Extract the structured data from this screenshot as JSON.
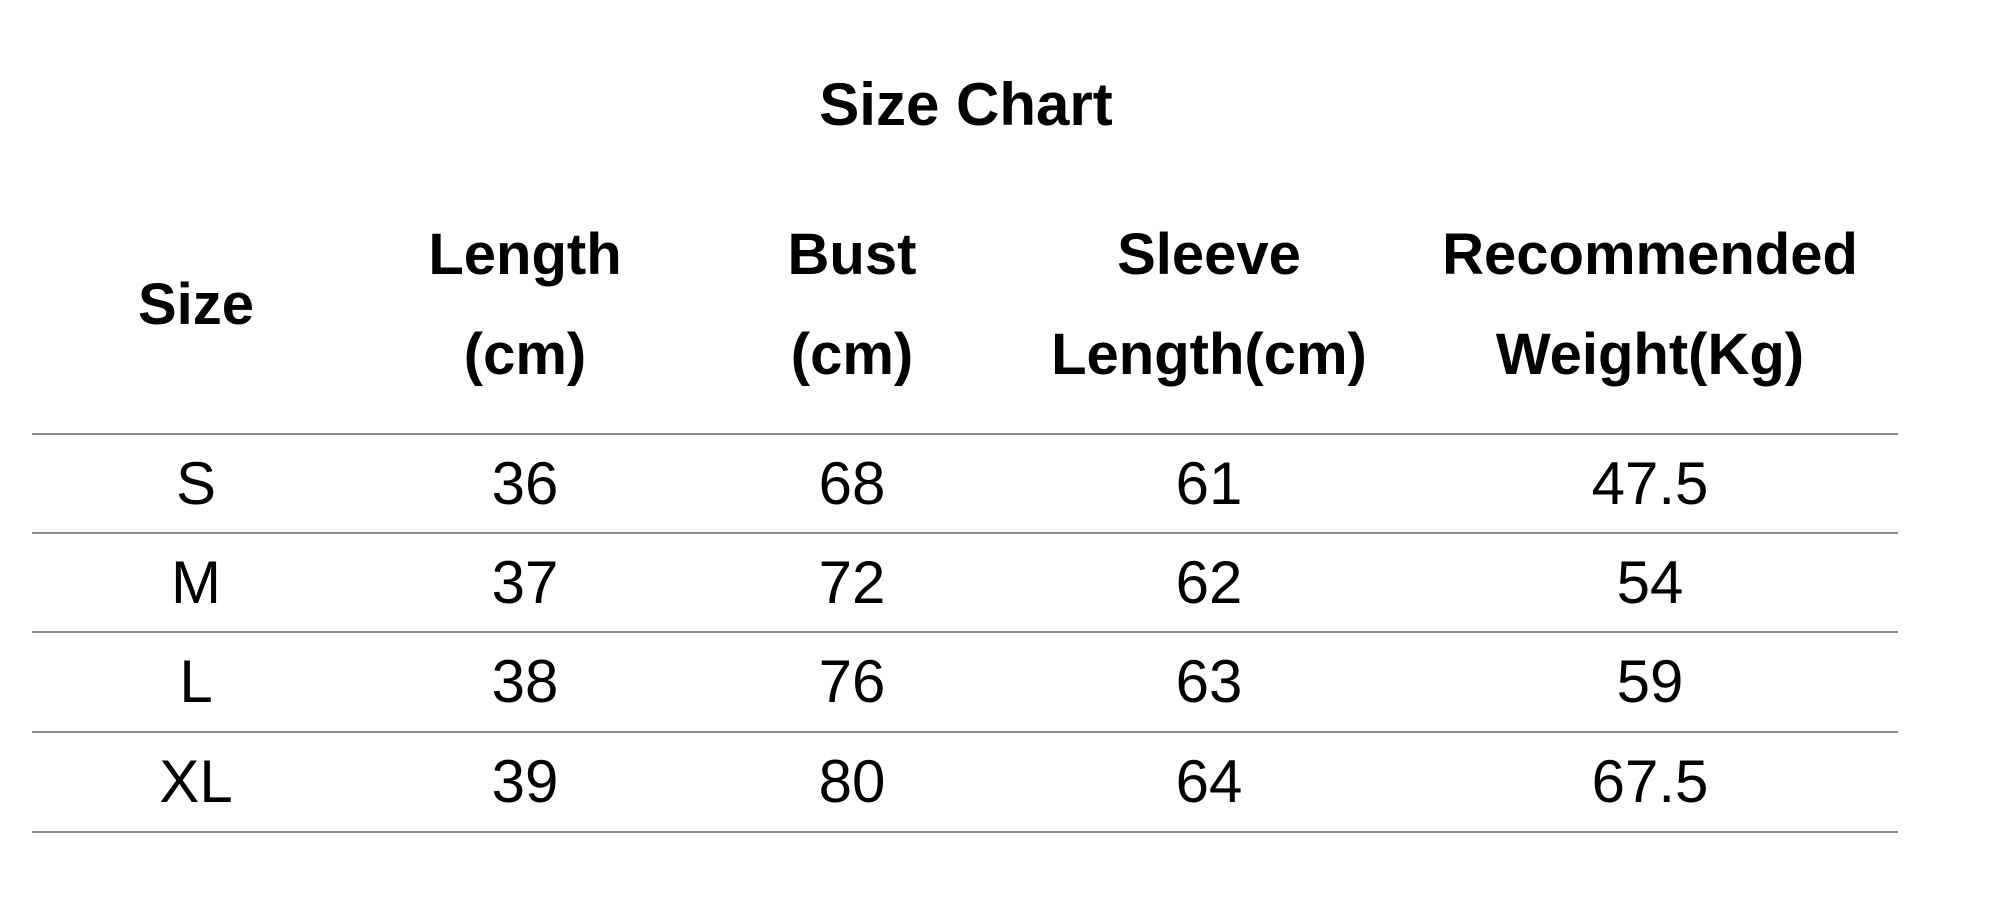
{
  "chart_data": {
    "type": "table",
    "title": "Size Chart",
    "columns": [
      "Size",
      "Length\n(cm)",
      "Bust\n(cm)",
      "Sleeve\nLength(cm)",
      "Recommended\nWeight(Kg)"
    ],
    "rows": [
      [
        "S",
        "36",
        "68",
        "61",
        "47.5"
      ],
      [
        "M",
        "37",
        "72",
        "62",
        "54"
      ],
      [
        "L",
        "38",
        "76",
        "63",
        "59"
      ],
      [
        "XL",
        "39",
        "80",
        "64",
        "67.5"
      ]
    ],
    "line_color": "#8a8a8a"
  }
}
